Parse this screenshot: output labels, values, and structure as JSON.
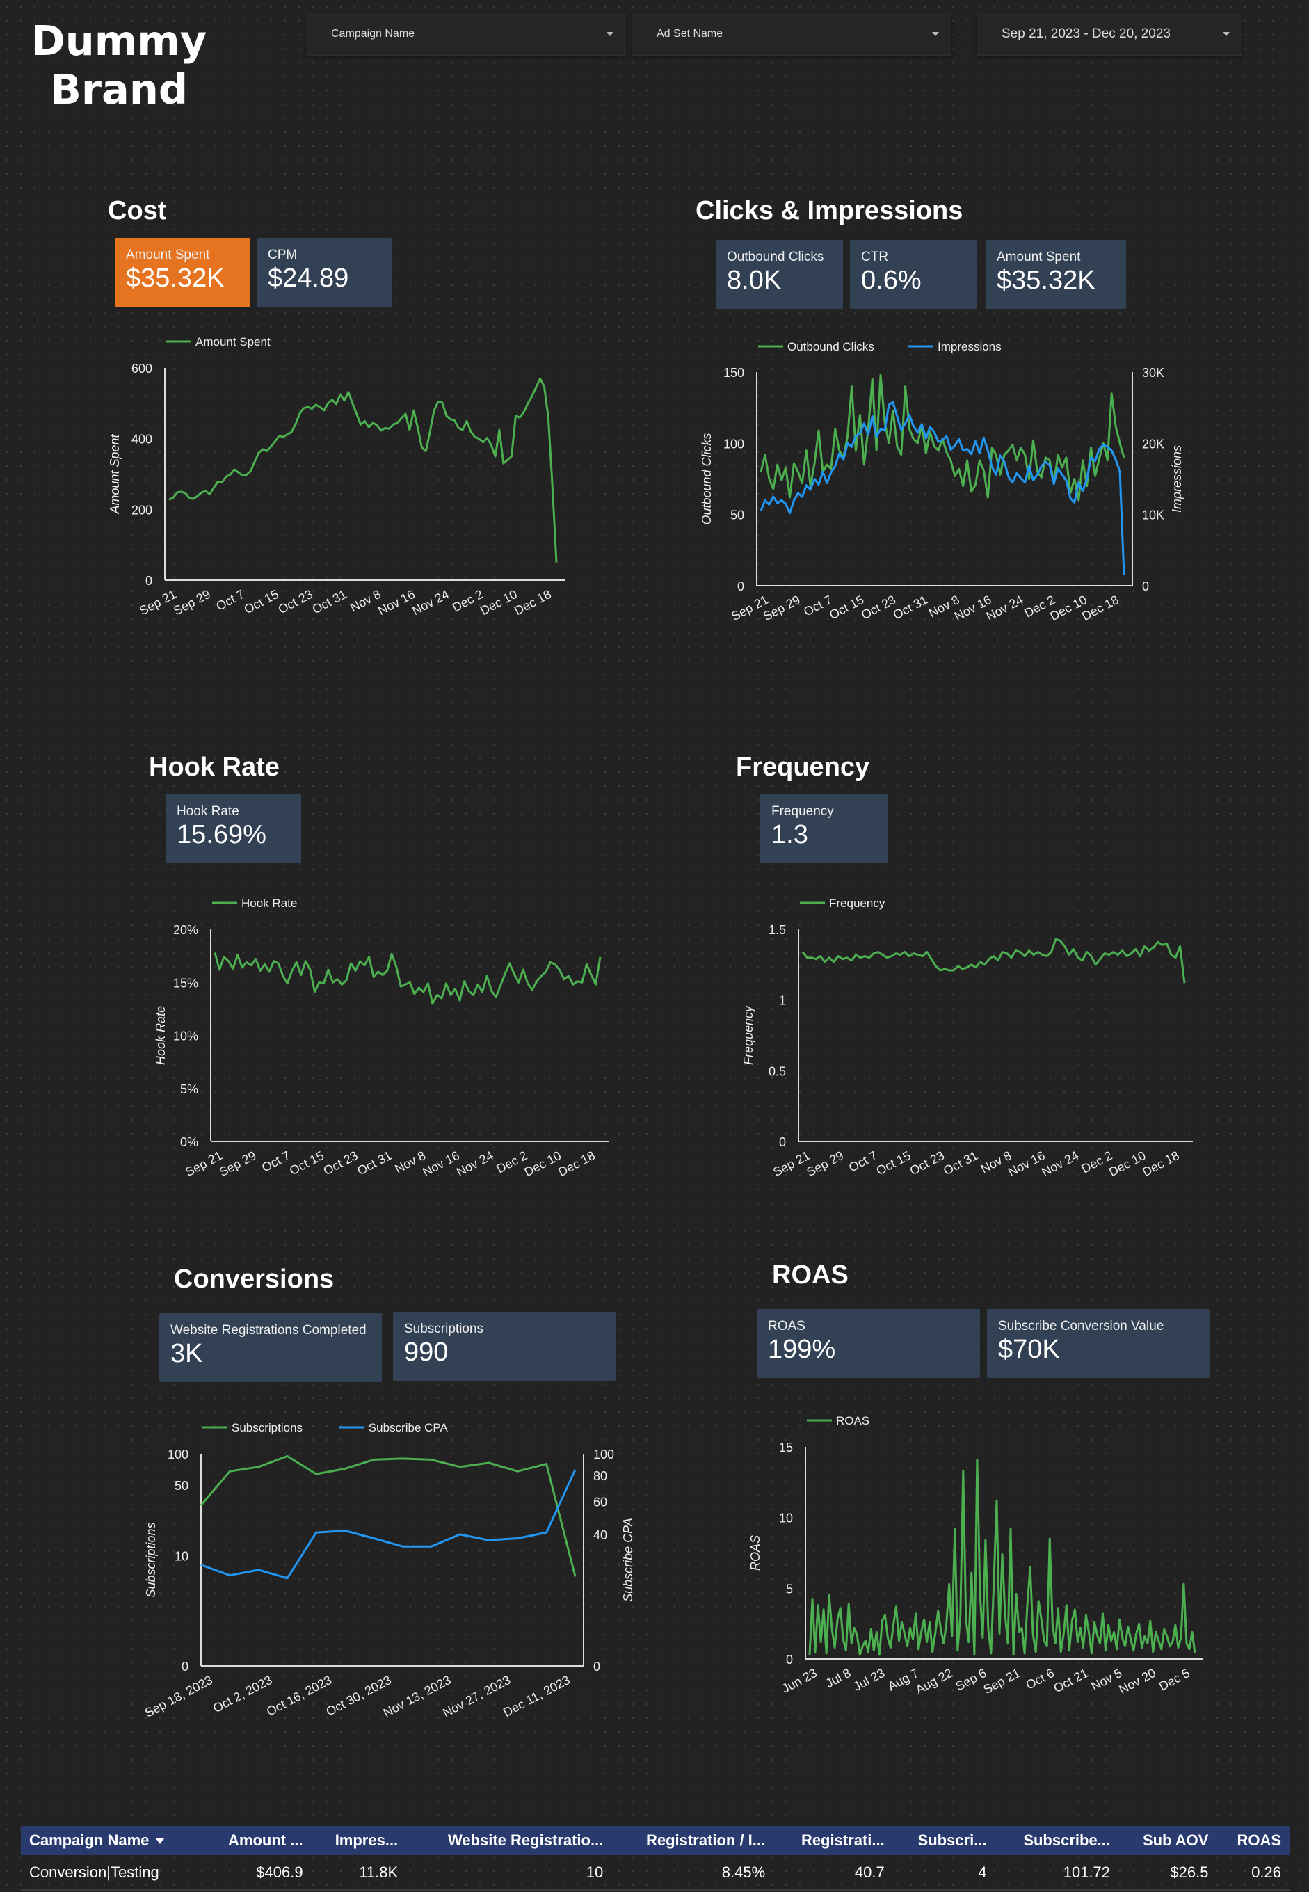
{
  "brand": {
    "title": "Dummy Brand"
  },
  "filters": {
    "campaign": "Campaign Name",
    "adset": "Ad Set Name",
    "date_range": "Sep 21, 2023 - Dec 20, 2023"
  },
  "sections": {
    "cost": "Cost",
    "clicks": "Clicks & Impressions",
    "hook": "Hook Rate",
    "frequency": "Frequency",
    "conversions": "Conversions",
    "roas": "ROAS"
  },
  "kpis": {
    "cost": [
      {
        "label": "Amount Spent",
        "value": "$35.32K"
      },
      {
        "label": "CPM",
        "value": "$24.89"
      }
    ],
    "clicks": [
      {
        "label": "Outbound Clicks",
        "value": "8.0K"
      },
      {
        "label": "CTR",
        "value": "0.6%"
      },
      {
        "label": "Amount Spent",
        "value": "$35.32K"
      }
    ],
    "hook": [
      {
        "label": "Hook Rate",
        "value": "15.69%"
      }
    ],
    "frequency": [
      {
        "label": "Frequency",
        "value": "1.3"
      }
    ],
    "conversions": [
      {
        "label": "Website Registrations Completed",
        "value": "3K"
      },
      {
        "label": "Subscriptions",
        "value": "990"
      }
    ],
    "roas": [
      {
        "label": "ROAS",
        "value": "199%"
      },
      {
        "label": "Subscribe Conversion Value",
        "value": "$70K"
      }
    ]
  },
  "colors": {
    "green": "#4caf50",
    "blue": "#2196f3",
    "orange": "#e67320",
    "card": "#334155"
  },
  "chart_data": [
    {
      "id": "cost",
      "type": "line",
      "x_ticks": [
        "Sep 21",
        "Sep 29",
        "Oct 7",
        "Oct 15",
        "Oct 23",
        "Oct 31",
        "Nov 8",
        "Nov 16",
        "Nov 24",
        "Dec 2",
        "Dec 10",
        "Dec 18"
      ],
      "ylabel": "Amount Spent",
      "ylim": [
        0,
        600
      ],
      "y_ticks": [
        "0",
        "200",
        "400",
        "600"
      ],
      "legend": "top-left",
      "series": [
        {
          "name": "Amount Spent",
          "color": "#4caf50",
          "values": [
            228,
            233,
            248,
            250,
            246,
            232,
            230,
            238,
            248,
            252,
            243,
            262,
            279,
            276,
            293,
            298,
            313,
            305,
            296,
            298,
            308,
            335,
            360,
            370,
            365,
            378,
            392,
            408,
            405,
            412,
            418,
            440,
            470,
            486,
            490,
            485,
            496,
            490,
            480,
            500,
            510,
            498,
            525,
            508,
            532,
            500,
            470,
            440,
            450,
            432,
            445,
            438,
            423,
            430,
            428,
            440,
            445,
            458,
            470,
            425,
            480,
            430,
            375,
            365,
            420,
            480,
            505,
            502,
            465,
            455,
            452,
            430,
            425,
            450,
            420,
            405,
            400,
            390,
            402,
            382,
            350,
            425,
            330,
            340,
            350,
            465,
            460,
            475,
            500,
            520,
            545,
            570,
            548,
            460,
            270,
            50
          ]
        }
      ]
    },
    {
      "id": "clicks",
      "type": "line",
      "x_ticks": [
        "Sep 21",
        "Sep 29",
        "Oct 7",
        "Oct 15",
        "Oct 23",
        "Oct 31",
        "Nov 8",
        "Nov 16",
        "Nov 24",
        "Dec 2",
        "Dec 10",
        "Dec 18"
      ],
      "ylabel": "Outbound Clicks",
      "ylim": [
        0,
        150
      ],
      "y_ticks": [
        "0",
        "50",
        "100",
        "150"
      ],
      "y2label": "Impressions",
      "y2lim": [
        0,
        30000
      ],
      "y2_ticks": [
        "0",
        "10K",
        "20K",
        "30K"
      ],
      "legend": "top-left",
      "series": [
        {
          "name": "Outbound Clicks",
          "color": "#4caf50",
          "values": [
            80,
            92,
            75,
            68,
            85,
            74,
            83,
            62,
            86,
            80,
            72,
            95,
            70,
            86,
            109,
            80,
            85,
            82,
            110,
            95,
            90,
            105,
            140,
            95,
            120,
            85,
            110,
            145,
            95,
            148,
            115,
            100,
            123,
            98,
            92,
            140,
            110,
            103,
            100,
            113,
            93,
            108,
            98,
            95,
            103,
            94,
            88,
            77,
            82,
            70,
            88,
            66,
            71,
            88,
            81,
            62,
            97,
            92,
            78,
            92,
            95,
            99,
            88,
            97,
            92,
            75,
            102,
            80,
            76,
            90,
            88,
            72,
            92,
            83,
            90,
            65,
            75,
            60,
            88,
            70,
            97,
            77,
            89,
            100,
            88,
            135,
            112,
            100,
            90
          ]
        },
        {
          "name": "Impressions",
          "color": "#2196f3",
          "values": [
            10500,
            12000,
            11400,
            12500,
            11600,
            12000,
            11500,
            10200,
            12000,
            13000,
            12500,
            14100,
            13500,
            15000,
            14200,
            16000,
            14400,
            15900,
            16800,
            18600,
            17700,
            20000,
            19500,
            21000,
            21400,
            22800,
            21200,
            23800,
            20900,
            22000,
            21800,
            25400,
            25800,
            23800,
            21900,
            22800,
            24000,
            22400,
            21500,
            22700,
            20700,
            22300,
            21600,
            20200,
            20500,
            21000,
            19100,
            19700,
            20600,
            19000,
            19200,
            18500,
            20300,
            18600,
            20800,
            19000,
            16700,
            15600,
            18300,
            17400,
            15300,
            14500,
            15800,
            15100,
            14500,
            16800,
            14800,
            15600,
            16800,
            17400,
            16900,
            14300,
            16500,
            15600,
            14800,
            12300,
            11700,
            14500,
            13300,
            15000,
            18000,
            17500,
            19200,
            19800,
            19500,
            19000,
            17700,
            16000,
            1500
          ]
        }
      ]
    },
    {
      "id": "hook",
      "type": "line",
      "x_ticks": [
        "Sep 21",
        "Sep 29",
        "Oct 7",
        "Oct 15",
        "Oct 23",
        "Oct 31",
        "Nov 8",
        "Nov 16",
        "Nov 24",
        "Dec 2",
        "Dec 10",
        "Dec 18"
      ],
      "ylabel": "Hook Rate",
      "ylim": [
        0,
        20
      ],
      "y_ticks": [
        "0%",
        "5%",
        "10%",
        "15%",
        "20%"
      ],
      "legend": "top-left",
      "series": [
        {
          "name": "Hook Rate",
          "color": "#4caf50",
          "values": [
            17.8,
            16.2,
            17.4,
            17.0,
            16.3,
            17.6,
            16.4,
            16.9,
            16.6,
            17.2,
            16.1,
            16.7,
            16.0,
            17.0,
            16.8,
            15.6,
            14.9,
            16.1,
            16.9,
            15.7,
            17.0,
            16.2,
            14.1,
            15.0,
            14.9,
            16.2,
            15.0,
            15.3,
            14.8,
            15.2,
            16.8,
            16.1,
            17.0,
            16.6,
            17.4,
            15.5,
            16.0,
            15.7,
            16.1,
            17.7,
            16.5,
            14.6,
            14.8,
            15.0,
            13.9,
            14.5,
            14.1,
            14.9,
            13.0,
            13.8,
            13.5,
            14.9,
            13.8,
            14.4,
            13.3,
            15.1,
            14.2,
            13.8,
            14.8,
            14.1,
            15.6,
            14.2,
            13.6,
            14.7,
            15.8,
            16.8,
            15.8,
            15.0,
            16.2,
            14.9,
            14.3,
            15.1,
            15.6,
            16.0,
            16.9,
            16.7,
            16.2,
            15.3,
            15.6,
            14.8,
            15.1,
            15.0,
            16.7,
            15.7,
            14.8,
            17.4
          ]
        }
      ]
    },
    {
      "id": "frequency",
      "type": "line",
      "x_ticks": [
        "Sep 21",
        "Sep 29",
        "Oct 7",
        "Oct 15",
        "Oct 23",
        "Oct 31",
        "Nov 8",
        "Nov 16",
        "Nov 24",
        "Dec 2",
        "Dec 10",
        "Dec 18"
      ],
      "ylabel": "Frequency",
      "ylim": [
        0,
        1.5
      ],
      "y_ticks": [
        "0",
        "0.5",
        "1",
        "1.5"
      ],
      "legend": "top-left",
      "series": [
        {
          "name": "Frequency",
          "color": "#4caf50",
          "values": [
            1.34,
            1.3,
            1.3,
            1.29,
            1.31,
            1.27,
            1.3,
            1.27,
            1.31,
            1.29,
            1.3,
            1.28,
            1.32,
            1.3,
            1.31,
            1.3,
            1.33,
            1.34,
            1.32,
            1.3,
            1.31,
            1.33,
            1.32,
            1.34,
            1.31,
            1.33,
            1.32,
            1.31,
            1.34,
            1.29,
            1.24,
            1.21,
            1.22,
            1.21,
            1.21,
            1.24,
            1.22,
            1.23,
            1.25,
            1.23,
            1.27,
            1.25,
            1.29,
            1.31,
            1.28,
            1.34,
            1.33,
            1.3,
            1.35,
            1.34,
            1.31,
            1.35,
            1.32,
            1.34,
            1.32,
            1.31,
            1.34,
            1.43,
            1.42,
            1.38,
            1.32,
            1.36,
            1.3,
            1.28,
            1.34,
            1.31,
            1.25,
            1.29,
            1.33,
            1.32,
            1.34,
            1.32,
            1.35,
            1.31,
            1.33,
            1.36,
            1.31,
            1.38,
            1.35,
            1.37,
            1.41,
            1.39,
            1.4,
            1.32,
            1.3,
            1.38,
            1.12
          ]
        }
      ]
    },
    {
      "id": "conversions",
      "type": "line",
      "x_ticks": [
        "Sep 18, 2023",
        "Oct 2, 2023",
        "Oct 16, 2023",
        "Oct 30, 2023",
        "Nov 13, 2023",
        "Nov 27, 2023",
        "Dec 11, 2023"
      ],
      "ylabel": "Subscriptions",
      "y_ticks": [
        "0",
        "10",
        "50",
        "100"
      ],
      "y2label": "Subscribe CPA",
      "y2_ticks": [
        "0",
        "40",
        "60",
        "80",
        "100"
      ],
      "legend": "top-left",
      "series": [
        {
          "name": "Subscriptions",
          "color": "#4caf50",
          "values": [
            32,
            68,
            75,
            95,
            64,
            72,
            88,
            90,
            88,
            75,
            82,
            68,
            80,
            6
          ]
        },
        {
          "name": "Subscribe CPA",
          "color": "#2196f3",
          "values": [
            26,
            22,
            24,
            21,
            41,
            42,
            38,
            34,
            34,
            40,
            37,
            38,
            41,
            85
          ]
        }
      ]
    },
    {
      "id": "roas",
      "type": "line",
      "x_ticks": [
        "Jun 23",
        "Jul 8",
        "Jul 23",
        "Aug 7",
        "Aug 22",
        "Sep 6",
        "Sep 21",
        "Oct 6",
        "Oct 21",
        "Nov 5",
        "Nov 20",
        "Dec 5"
      ],
      "ylabel": "ROAS",
      "ylim": [
        0,
        15
      ],
      "y_ticks": [
        "0",
        "5",
        "10",
        "15"
      ],
      "legend": "top-left",
      "series": [
        {
          "name": "ROAS",
          "color": "#4caf50",
          "values": [
            0.3,
            4.2,
            0.5,
            3.8,
            1.2,
            3.5,
            0.4,
            4.5,
            2.1,
            0.8,
            2.8,
            3.6,
            1.4,
            0.6,
            3.9,
            1.1,
            2.2,
            1.7,
            0.3,
            0.9,
            1.3,
            0.5,
            2.1,
            0.6,
            1.9,
            0.3,
            2.7,
            3.1,
            1.5,
            0.8,
            2.4,
            3.7,
            1.3,
            2.6,
            1.8,
            0.9,
            2.2,
            1.4,
            3.2,
            0.7,
            1.9,
            2.8,
            1.2,
            2.6,
            0.5,
            1.8,
            3.4,
            2.1,
            1.1,
            2.5,
            5.3,
            1.6,
            9.2,
            0.6,
            3.1,
            13.3,
            2.8,
            1.2,
            6.1,
            0.3,
            14.1,
            4.7,
            1.5,
            8.4,
            2.1,
            0.4,
            5.6,
            11.2,
            1.8,
            7.4,
            3.2,
            1.1,
            9.2,
            0.3,
            4.6,
            1.9,
            2.2,
            0.4,
            3.9,
            6.5,
            1.7,
            0.5,
            4.1,
            2.8,
            1.3,
            0.9,
            8.5,
            2.4,
            1.1,
            3.6,
            0.5,
            1.8,
            3.8,
            0.6,
            2.7,
            3.5,
            1.2,
            2.2,
            0.8,
            3.1,
            1.9,
            0.4,
            2.6,
            1.7,
            1.1,
            3.2,
            0.6,
            2.4,
            1.3,
            1.9,
            0.7,
            2.8,
            1.5,
            0.9,
            2.3,
            1.4,
            0.6,
            1.8,
            2.5,
            0.8,
            1.6,
            1.1,
            2.7,
            0.5,
            1.9,
            1.3,
            0.7,
            2.1,
            1.6,
            0.9,
            1.2,
            2.4,
            0.8,
            1.5,
            5.3,
            1.1,
            0.7,
            1.9,
            0.4
          ]
        }
      ]
    }
  ],
  "table": {
    "headers": [
      "Campaign Name",
      "Amount ...",
      "Impres...",
      "Website Registratio...",
      "Registration / I...",
      "Registrati...",
      "Subscri...",
      "Subscribe...",
      "Sub AOV",
      "ROAS"
    ],
    "rows": [
      [
        "Conversion|Testing",
        "$406.9",
        "11.8K",
        "10",
        "8.45%",
        "40.7",
        "4",
        "101.72",
        "$26.5",
        "0.26"
      ]
    ]
  }
}
